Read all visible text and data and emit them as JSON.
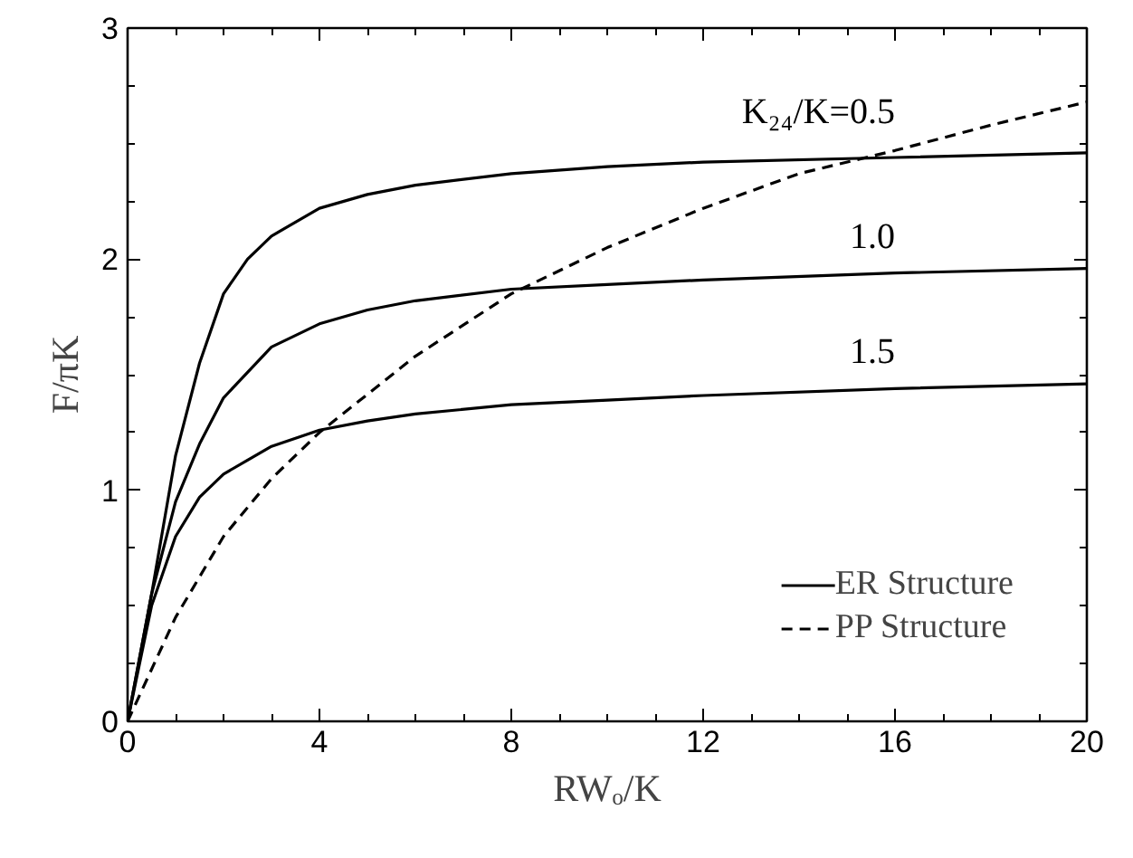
{
  "chart_data": {
    "type": "line",
    "xlabel": "RWₒ/K",
    "ylabel": "F/πK",
    "xlim": [
      0,
      20
    ],
    "ylim": [
      0,
      3
    ],
    "xticks": [
      0,
      4,
      8,
      12,
      16,
      20
    ],
    "yticks": [
      0,
      1,
      2,
      3
    ],
    "grid": false,
    "legend": "bottom right",
    "series": [
      {
        "name": "ER Structure",
        "color": "#000000",
        "line_style": "solid",
        "x": [
          0,
          0.5,
          1,
          1.5,
          2,
          2.5,
          3,
          4,
          5,
          6,
          8,
          10,
          12,
          16,
          20
        ],
        "values": [
          0,
          0.55,
          1.15,
          1.55,
          1.85,
          2.0,
          2.1,
          2.22,
          2.28,
          2.32,
          2.37,
          2.4,
          2.42,
          2.44,
          2.46
        ]
      },
      {
        "color": "#000000",
        "line_style": "solid",
        "x": [
          0,
          0.5,
          1,
          1.5,
          2,
          3,
          4,
          5,
          6,
          8,
          10,
          12,
          16,
          20
        ],
        "values": [
          0,
          0.55,
          0.95,
          1.2,
          1.4,
          1.62,
          1.72,
          1.78,
          1.82,
          1.87,
          1.89,
          1.91,
          1.94,
          1.96
        ]
      },
      {
        "color": "#000000",
        "line_style": "solid",
        "x": [
          0,
          0.5,
          1,
          1.5,
          2,
          3,
          4,
          5,
          6,
          8,
          10,
          12,
          16,
          20
        ],
        "values": [
          0,
          0.5,
          0.8,
          0.97,
          1.07,
          1.19,
          1.26,
          1.3,
          1.33,
          1.37,
          1.39,
          1.41,
          1.44,
          1.46
        ]
      },
      {
        "name": "PP Structure",
        "color": "#000000",
        "line_style": "dashed",
        "x": [
          0,
          1,
          2,
          3,
          4,
          6,
          8,
          10,
          12,
          14,
          16,
          18,
          20
        ],
        "values": [
          0,
          0.45,
          0.8,
          1.05,
          1.25,
          1.58,
          1.85,
          2.05,
          2.22,
          2.37,
          2.47,
          2.58,
          2.68
        ]
      }
    ],
    "annotations": [
      "K₂₄/K=0.5",
      "1.0",
      "1.5"
    ]
  }
}
